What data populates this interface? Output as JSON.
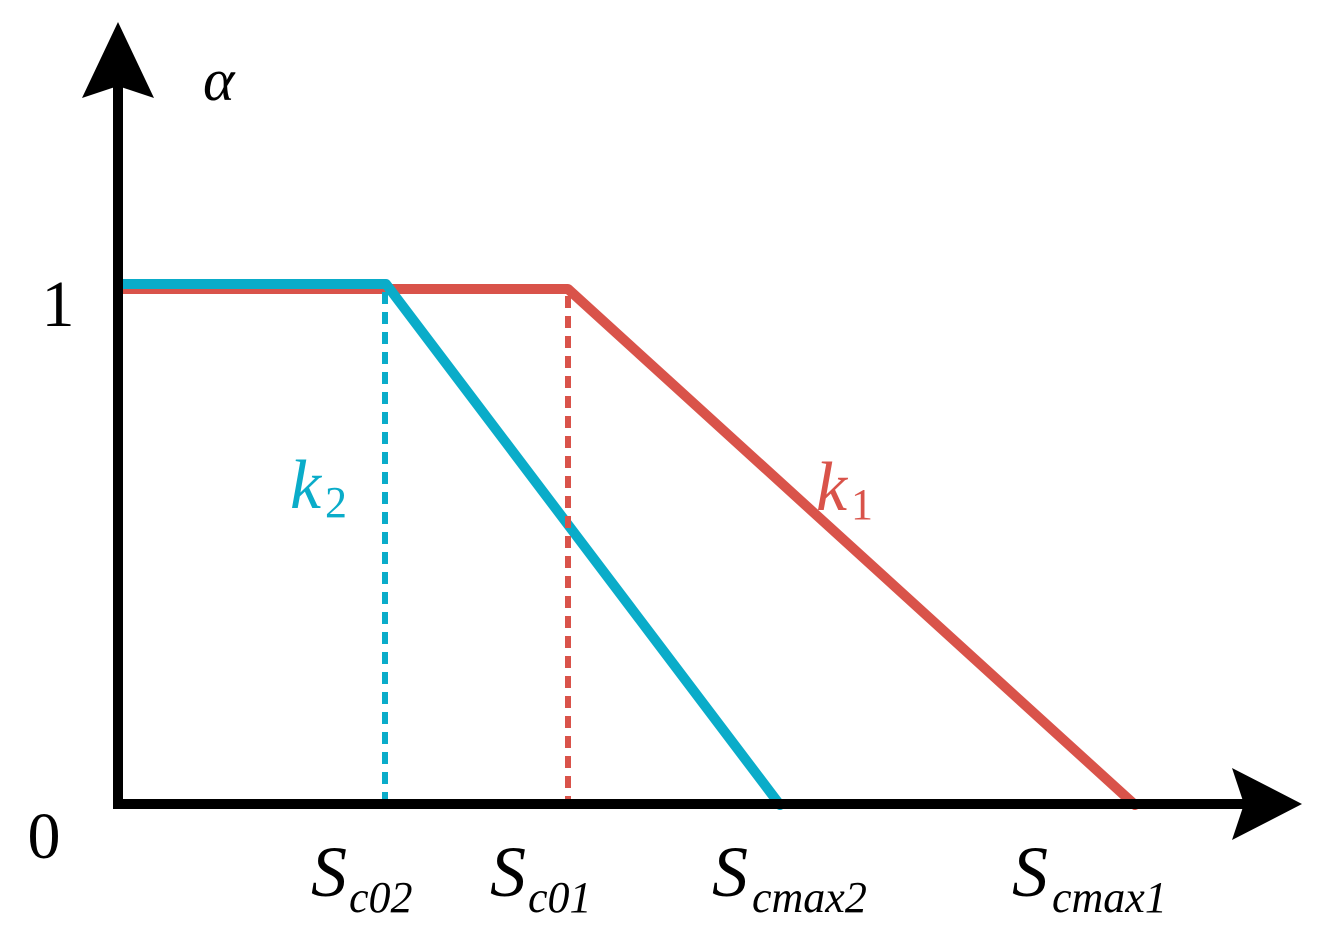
{
  "diagram": {
    "axis": {
      "y_label": "α",
      "y_tick_top": "1",
      "y_tick_origin": "0"
    },
    "labels": {
      "sc02": {
        "base": "S",
        "sub": "c02"
      },
      "sc01": {
        "base": "S",
        "sub": "c01"
      },
      "scmax2": {
        "base": "S",
        "sub": "cmax2"
      },
      "scmax1": {
        "base": "S",
        "sub": "cmax1"
      },
      "k1": {
        "base": "k",
        "sub": "1"
      },
      "k2": {
        "base": "k",
        "sub": "2"
      }
    },
    "colors": {
      "axis": "#000000",
      "curve_k1": "#d9534a",
      "curve_k2": "#0aacc9"
    }
  }
}
